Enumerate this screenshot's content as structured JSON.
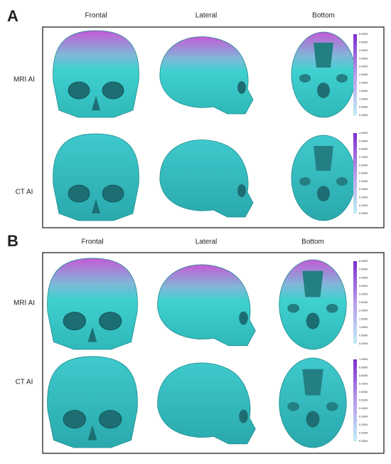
{
  "panels": [
    {
      "label": "A",
      "columns": [
        "Frontal",
        "Lateral",
        "Bottom"
      ],
      "rows": [
        {
          "label": "MRI AI",
          "colorbar": [
            "5.0000",
            "4.5000",
            "4.0000",
            "3.5000",
            "3.0000",
            "2.5000",
            "2.0000",
            "1.5000",
            "1.0000",
            "0.5000",
            "0.0000"
          ]
        },
        {
          "label": "CT AI",
          "colorbar": [
            "1.0000",
            "0.9000",
            "0.8000",
            "0.7000",
            "0.6000",
            "0.5000",
            "0.4000",
            "0.3000",
            "0.2000",
            "0.1000",
            "0.0000"
          ]
        }
      ]
    },
    {
      "label": "B",
      "columns": [
        "Frontal",
        "Lateral",
        "Bottom"
      ],
      "rows": [
        {
          "label": "MRI AI",
          "colorbar": [
            "5.0000",
            "4.5000",
            "4.0000",
            "3.5000",
            "3.0000",
            "2.5000",
            "2.0000",
            "1.5000",
            "1.0000",
            "0.5000",
            "0.0000"
          ]
        },
        {
          "label": "CT AI",
          "colorbar": [
            "1.0000",
            "0.9000",
            "0.8000",
            "0.7000",
            "0.6000",
            "0.5000",
            "0.4000",
            "0.3000",
            "0.2000",
            "0.1000",
            "0.0000"
          ]
        }
      ]
    }
  ]
}
